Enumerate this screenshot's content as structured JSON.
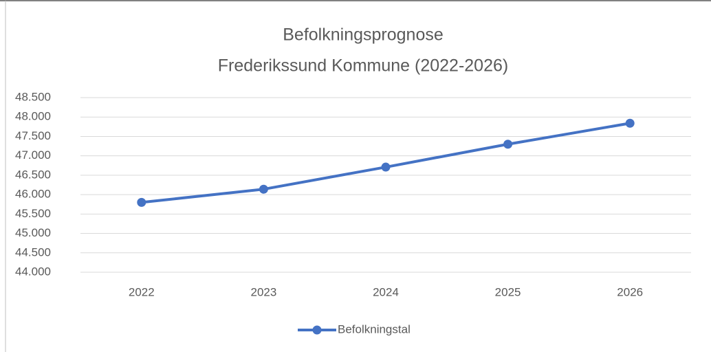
{
  "chart_data": {
    "type": "line",
    "title": [
      "Befolkningsprognose",
      "Frederikssund Kommune (2022-2026)"
    ],
    "categories": [
      "2022",
      "2023",
      "2024",
      "2025",
      "2026"
    ],
    "series": [
      {
        "name": "Befolkningstal",
        "color": "#4472c4",
        "values": [
          45800,
          46140,
          46710,
          47300,
          47840
        ]
      }
    ],
    "ylim": [
      44000,
      48500
    ],
    "yticks": [
      {
        "value": 44000,
        "label": "44.000"
      },
      {
        "value": 44500,
        "label": "44.500"
      },
      {
        "value": 45000,
        "label": "45.000"
      },
      {
        "value": 45500,
        "label": "45.500"
      },
      {
        "value": 46000,
        "label": "46.000"
      },
      {
        "value": 46500,
        "label": "46.500"
      },
      {
        "value": 47000,
        "label": "47.000"
      },
      {
        "value": 47500,
        "label": "47.500"
      },
      {
        "value": 48000,
        "label": "48.000"
      },
      {
        "value": 48500,
        "label": "48.500"
      }
    ],
    "grid": true,
    "legend": "bottom"
  }
}
